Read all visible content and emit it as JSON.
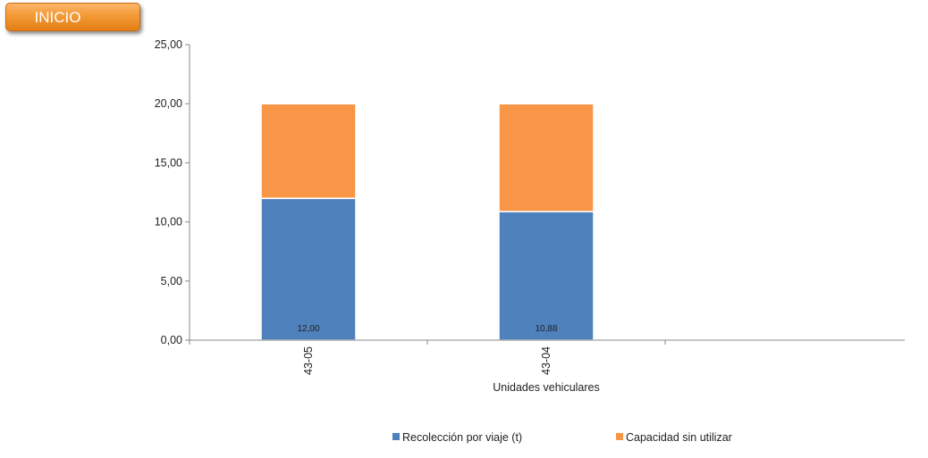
{
  "header": {
    "inicio_label": "INICIO"
  },
  "colors": {
    "recoleccion": "#4f81bd",
    "capacidad": "#f79646",
    "axis": "#888888",
    "button": "#f39a36"
  },
  "chart_data": {
    "type": "bar",
    "stacked": true,
    "categories": [
      "43-05",
      "43-04"
    ],
    "series": [
      {
        "name": "Recolección por viaje (t)",
        "values": [
          12.0,
          10.88
        ],
        "data_labels": [
          "12,00",
          "10,88"
        ],
        "color": "#4f81bd"
      },
      {
        "name": "Capacidad sin utilizar",
        "values": [
          8.0,
          9.12
        ],
        "color": "#f79646"
      }
    ],
    "title": "",
    "xlabel": "Unidades vehiculares",
    "ylabel": "",
    "ylim": [
      0,
      25
    ],
    "yticks": [
      0,
      5,
      10,
      15,
      20,
      25
    ],
    "ytick_labels": [
      "0,00",
      "5,00",
      "10,00",
      "15,00",
      "20,00",
      "25,00"
    ],
    "grid": false,
    "legend_position": "bottom"
  }
}
